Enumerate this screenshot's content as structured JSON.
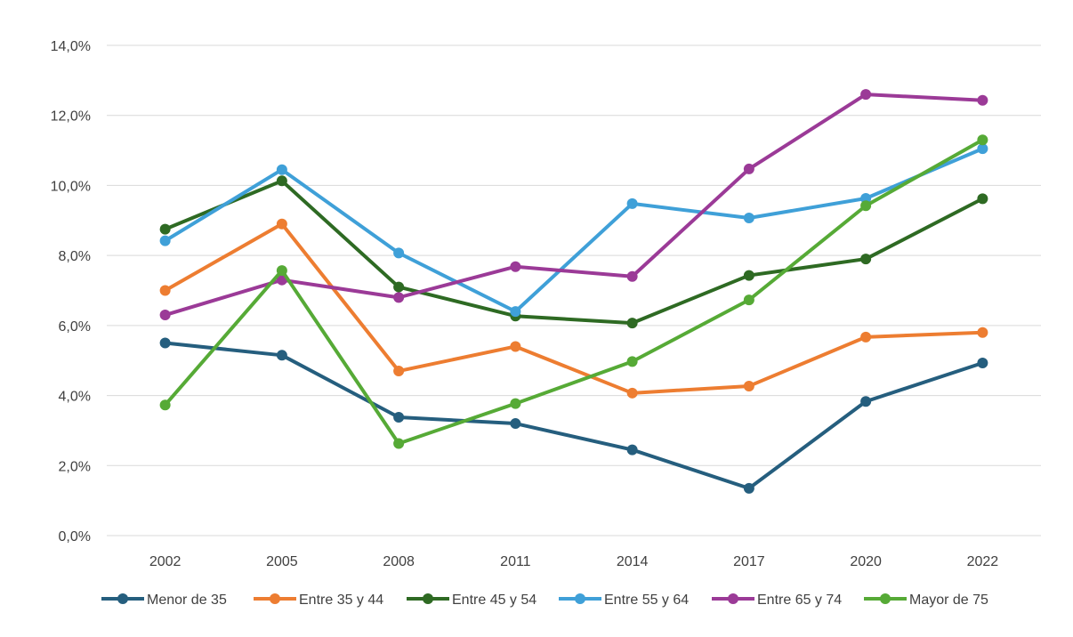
{
  "chart_data": {
    "type": "line",
    "title": "",
    "xlabel": "",
    "ylabel": "",
    "categories": [
      "2002",
      "2005",
      "2008",
      "2011",
      "2014",
      "2017",
      "2020",
      "2022"
    ],
    "ylim": [
      0,
      14
    ],
    "yticks": [
      0,
      2,
      4,
      6,
      8,
      10,
      12,
      14
    ],
    "ytick_labels": [
      "0,0%",
      "2,0%",
      "4,0%",
      "6,0%",
      "8,0%",
      "10,0%",
      "12,0%",
      "14,0%"
    ],
    "grid": true,
    "legend_position": "bottom",
    "series": [
      {
        "name": "Menor de 35",
        "color": "#255E7E",
        "values": [
          5.5,
          5.15,
          3.38,
          3.2,
          2.45,
          1.35,
          3.83,
          4.93
        ]
      },
      {
        "name": "Entre 35 y 44",
        "color": "#ED7D31",
        "values": [
          7.0,
          8.9,
          4.7,
          5.4,
          4.07,
          4.27,
          5.67,
          5.8
        ]
      },
      {
        "name": "Entre 45 y 54",
        "color": "#2E6A23",
        "values": [
          8.75,
          10.13,
          7.1,
          6.27,
          6.07,
          7.43,
          7.9,
          9.62
        ]
      },
      {
        "name": "Entre 55 y 64",
        "color": "#3FA0D8",
        "values": [
          8.42,
          10.45,
          8.07,
          6.4,
          9.48,
          9.07,
          9.63,
          11.05
        ]
      },
      {
        "name": "Entre 65 y 74",
        "color": "#9B3A97",
        "values": [
          6.3,
          7.3,
          6.8,
          7.68,
          7.4,
          10.47,
          12.6,
          12.43
        ]
      },
      {
        "name": "Mayor de 75",
        "color": "#56AA36",
        "values": [
          3.73,
          7.57,
          2.63,
          3.77,
          4.97,
          6.73,
          9.42,
          11.3
        ]
      }
    ]
  }
}
